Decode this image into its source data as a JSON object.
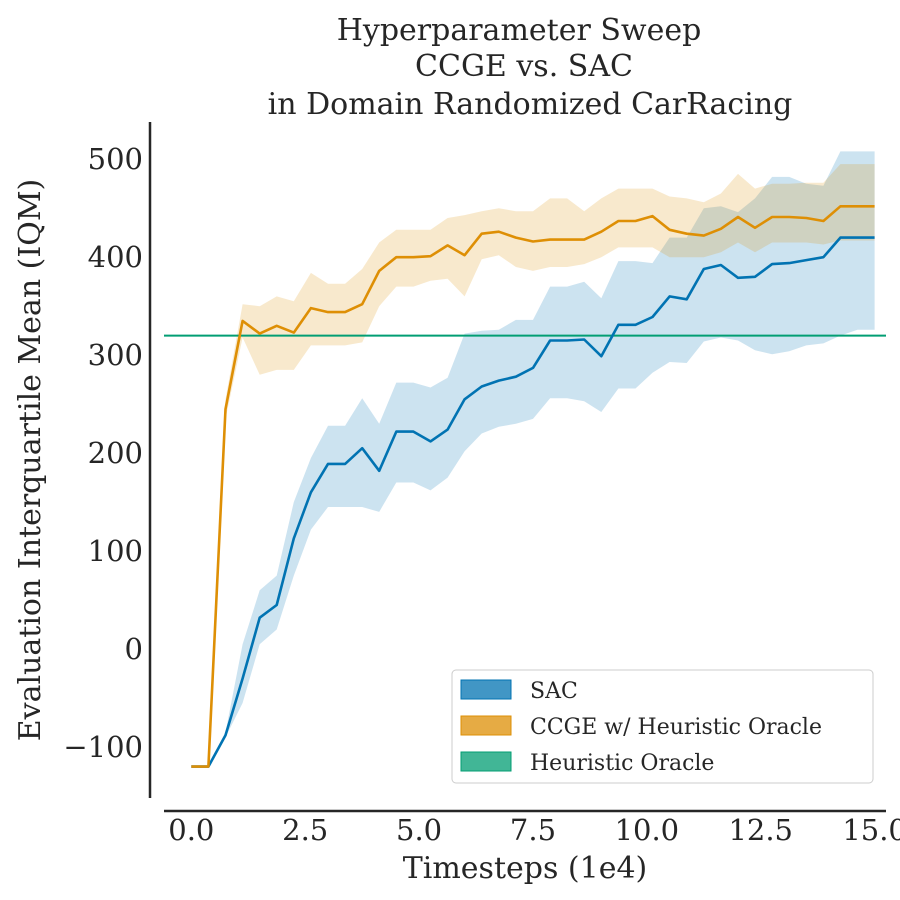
{
  "chart_data": {
    "type": "line",
    "title": [
      "Hyperparameter Sweep",
      "CCGE vs. SAC",
      "in Domain Randomized CarRacing"
    ],
    "xlabel": "Timesteps (1e4)",
    "ylabel": "Evaluation Interquartile Mean (IQM)",
    "xlim": [
      -0.6,
      15.25
    ],
    "ylim": [
      -152,
      538
    ],
    "xticks": [
      0,
      2.5,
      5,
      7.5,
      10,
      12.5,
      15
    ],
    "xtick_labels": [
      "0.0",
      "2.5",
      "5.0",
      "7.5",
      "10.0",
      "12.5",
      "15.0"
    ],
    "yticks": [
      -100,
      0,
      100,
      200,
      300,
      400,
      500
    ],
    "ytick_labels": [
      "−100",
      "0",
      "100",
      "200",
      "300",
      "400",
      "500"
    ],
    "grid": false,
    "legend_position": "lower-right",
    "series": [
      {
        "name": "SAC",
        "color": "#0173b2",
        "x": [
          0,
          0.375,
          0.75,
          1.125,
          1.5,
          1.875,
          2.25,
          2.625,
          3,
          3.375,
          3.75,
          4.125,
          4.5,
          4.875,
          5.25,
          5.625,
          6,
          6.375,
          6.75,
          7.125,
          7.5,
          7.875,
          8.25,
          8.625,
          9,
          9.375,
          9.75,
          10.125,
          10.5,
          10.875,
          11.25,
          11.625,
          12,
          12.375,
          12.75,
          13.125,
          13.5,
          13.875,
          14.25,
          14.625,
          15
        ],
        "values": [
          -120,
          -120,
          -88,
          -30,
          32,
          45,
          113,
          160,
          189,
          189,
          205,
          182,
          222,
          222,
          212,
          224,
          255,
          268,
          274,
          278,
          287,
          315,
          315,
          316,
          299,
          331,
          331,
          339,
          360,
          357,
          388,
          392,
          379,
          380,
          393,
          394,
          397,
          400,
          420,
          420,
          420
        ],
        "lower": [
          -120,
          -120,
          -90,
          -55,
          5,
          20,
          75,
          122,
          145,
          145,
          145,
          140,
          170,
          170,
          162,
          175,
          202,
          220,
          227,
          230,
          235,
          256,
          256,
          253,
          242,
          266,
          266,
          282,
          293,
          292,
          314,
          318,
          315,
          305,
          301,
          304,
          310,
          312,
          320,
          326,
          326
        ],
        "upper": [
          -120,
          -120,
          -85,
          5,
          60,
          75,
          150,
          195,
          228,
          228,
          256,
          230,
          272,
          272,
          267,
          277,
          322,
          325,
          326,
          336,
          336,
          370,
          370,
          375,
          358,
          396,
          396,
          394,
          420,
          420,
          450,
          452,
          446,
          460,
          482,
          482,
          475,
          473,
          508,
          508,
          508
        ]
      },
      {
        "name": "CCGE w/ Heuristic Oracle",
        "color": "#de8f05",
        "x": [
          0,
          0.375,
          0.75,
          1.125,
          1.5,
          1.875,
          2.25,
          2.625,
          3,
          3.375,
          3.75,
          4.125,
          4.5,
          4.875,
          5.25,
          5.625,
          6,
          6.375,
          6.75,
          7.125,
          7.5,
          7.875,
          8.25,
          8.625,
          9,
          9.375,
          9.75,
          10.125,
          10.5,
          10.875,
          11.25,
          11.625,
          12,
          12.375,
          12.75,
          13.125,
          13.5,
          13.875,
          14.25,
          14.625,
          15
        ],
        "values": [
          -120,
          -120,
          245,
          335,
          322,
          330,
          323,
          348,
          344,
          344,
          352,
          386,
          400,
          400,
          401,
          412,
          402,
          424,
          426,
          420,
          416,
          418,
          418,
          418,
          426,
          437,
          437,
          442,
          428,
          424,
          422,
          429,
          441,
          430,
          441,
          441,
          440,
          437,
          452,
          452,
          452
        ],
        "lower": [
          -120,
          -120,
          235,
          318,
          280,
          285,
          285,
          310,
          310,
          310,
          313,
          350,
          370,
          370,
          376,
          378,
          360,
          398,
          402,
          390,
          386,
          390,
          390,
          393,
          400,
          410,
          410,
          410,
          400,
          400,
          400,
          405,
          415,
          405,
          415,
          415,
          415,
          413,
          417,
          417,
          417
        ],
        "upper": [
          -120,
          -120,
          255,
          352,
          350,
          360,
          355,
          384,
          373,
          373,
          388,
          415,
          428,
          428,
          428,
          440,
          443,
          447,
          450,
          447,
          447,
          460,
          460,
          447,
          460,
          470,
          470,
          470,
          462,
          460,
          456,
          465,
          485,
          470,
          475,
          475,
          476,
          476,
          495,
          495,
          495
        ]
      },
      {
        "name": "Heuristic Oracle",
        "color": "#029e73",
        "type": "hline",
        "y": 320
      }
    ]
  }
}
